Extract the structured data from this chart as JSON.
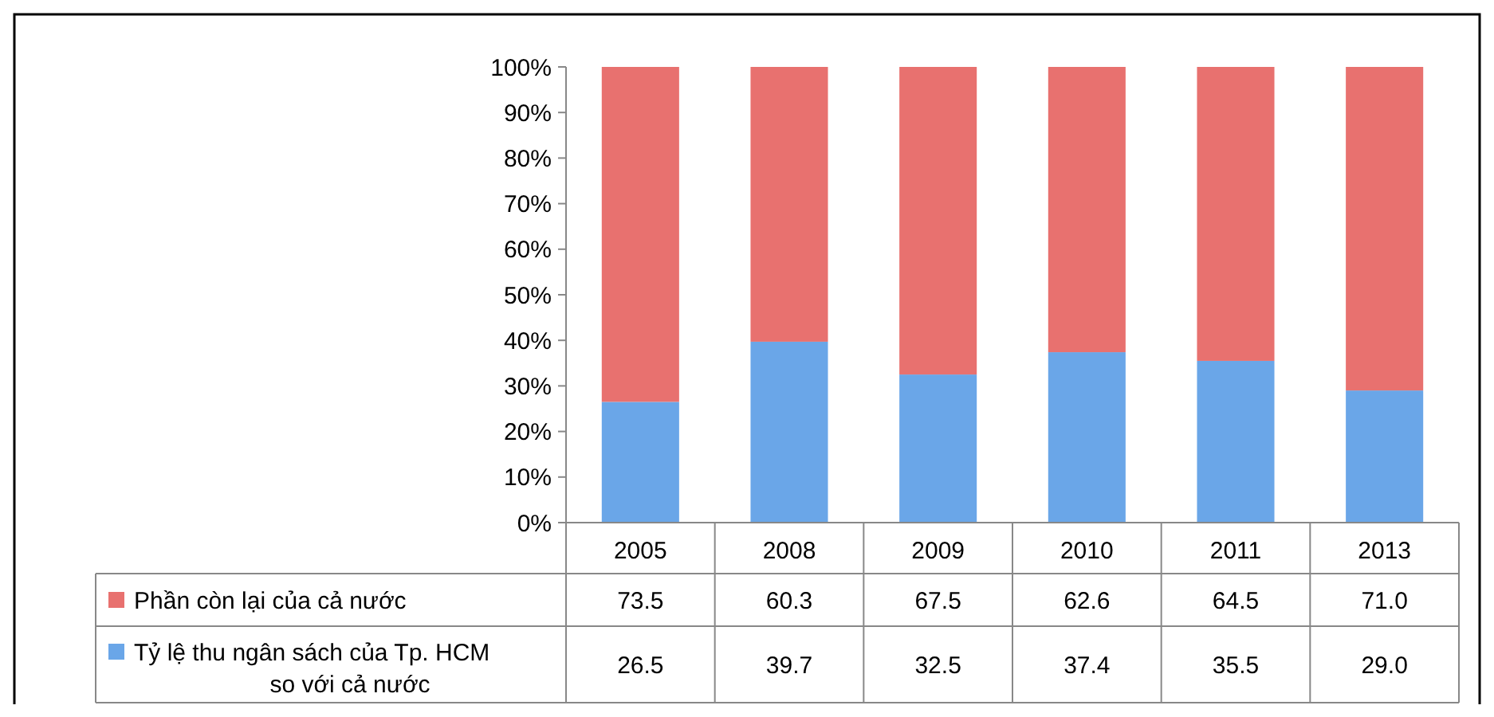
{
  "chart_data": {
    "type": "bar",
    "stacked": true,
    "categories": [
      "2005",
      "2008",
      "2009",
      "2010",
      "2011",
      "2013"
    ],
    "series": [
      {
        "name": "Tỷ lệ thu ngân sách của Tp. HCM so với cả nước",
        "color": "#6aa6e8",
        "values": [
          26.5,
          39.7,
          32.5,
          37.4,
          35.5,
          29.0
        ],
        "value_labels": [
          "26.5",
          "39.7",
          "32.5",
          "37.4",
          "35.5",
          "29.0"
        ]
      },
      {
        "name": "Phần còn lại của cả nước",
        "color": "#e8716f",
        "values": [
          73.5,
          60.3,
          67.5,
          62.6,
          64.5,
          71.0
        ],
        "value_labels": [
          "73.5",
          "60.3",
          "67.5",
          "62.6",
          "64.5",
          "71.0"
        ]
      }
    ],
    "ylim": [
      0,
      100
    ],
    "yticks": [
      {
        "value": 0,
        "label": "0%"
      },
      {
        "value": 10,
        "label": "10%"
      },
      {
        "value": 20,
        "label": "20%"
      },
      {
        "value": 30,
        "label": "30%"
      },
      {
        "value": 40,
        "label": "40%"
      },
      {
        "value": 50,
        "label": "50%"
      },
      {
        "value": 60,
        "label": "60%"
      },
      {
        "value": 70,
        "label": "70%"
      },
      {
        "value": 80,
        "label": "80%"
      },
      {
        "value": 90,
        "label": "90%"
      },
      {
        "value": 100,
        "label": "100%"
      }
    ],
    "legend": "bottom"
  }
}
